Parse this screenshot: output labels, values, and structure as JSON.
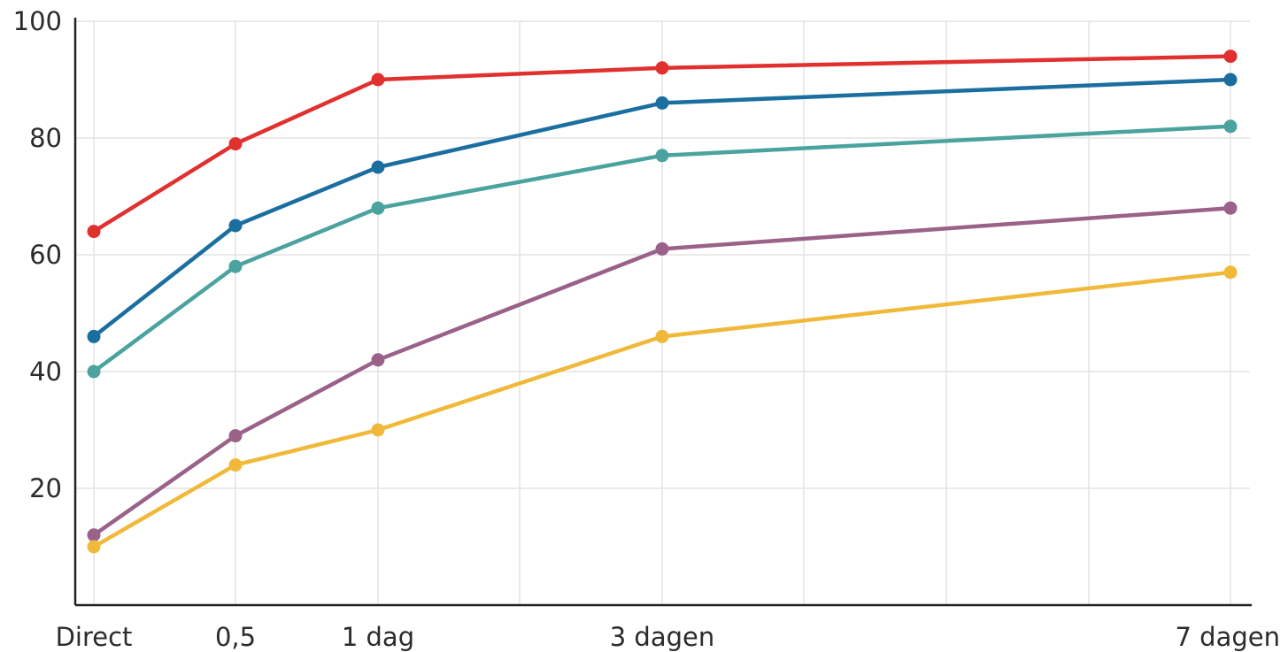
{
  "chart_data": {
    "type": "line",
    "title": "",
    "xlabel": "",
    "ylabel": "",
    "categories": [
      "Direct",
      "0,5",
      "1 dag",
      "3 dagen",
      "7 dagen"
    ],
    "x": [
      0,
      0.5,
      1,
      3,
      7
    ],
    "ylim": [
      0,
      100
    ],
    "yticks": [
      "20",
      "40",
      "60",
      "80",
      "100"
    ],
    "grid": true,
    "legend": "none",
    "series": [
      {
        "color": "#e0312f",
        "values": [
          64,
          79,
          90,
          92,
          94
        ]
      },
      {
        "color": "#1b6fa0",
        "values": [
          46,
          65,
          75,
          86,
          90
        ]
      },
      {
        "color": "#4aa39f",
        "values": [
          40,
          58,
          68,
          77,
          82
        ]
      },
      {
        "color": "#9a6189",
        "values": [
          12,
          29,
          42,
          61,
          68
        ]
      },
      {
        "color": "#f0b93a",
        "values": [
          10,
          24,
          30,
          46,
          57
        ]
      }
    ]
  }
}
